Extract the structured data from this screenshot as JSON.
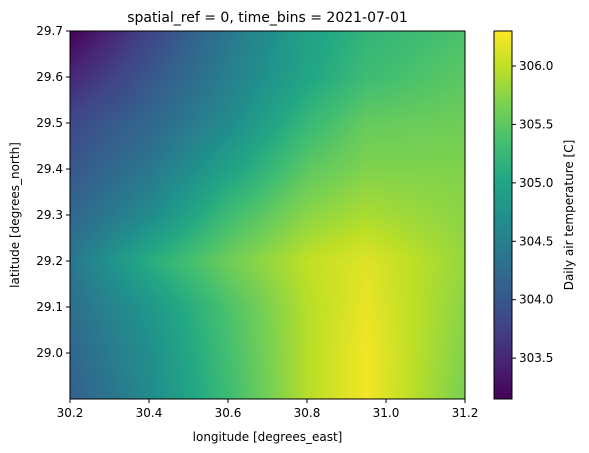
{
  "chart_data": {
    "type": "heatmap",
    "title": "spatial_ref = 0, time_bins = 2021-07-01",
    "xlabel": "longitude [degrees_east]",
    "ylabel": "latitude [degrees_north]",
    "xlim": [
      30.2,
      31.2
    ],
    "ylim": [
      28.9,
      29.7
    ],
    "xticks": [
      30.2,
      30.4,
      30.6,
      30.8,
      31.0,
      31.2
    ],
    "xtick_labels": [
      "30.2",
      "30.4",
      "30.6",
      "30.8",
      "31.0",
      "31.2"
    ],
    "yticks": [
      29.0,
      29.1,
      29.2,
      29.3,
      29.4,
      29.5,
      29.6,
      29.7
    ],
    "ytick_labels": [
      "29.0",
      "29.1",
      "29.2",
      "29.3",
      "29.4",
      "29.5",
      "29.6",
      "29.7"
    ],
    "colormap": "viridis",
    "colorbar": {
      "label": "Daily air temperature [C]",
      "range": [
        303.15,
        306.3
      ],
      "ticks": [
        303.5,
        304.0,
        304.5,
        305.0,
        305.5,
        306.0
      ],
      "tick_labels": [
        "303.5",
        "304.0",
        "304.5",
        "305.0",
        "305.5",
        "306.0"
      ]
    },
    "x": [
      30.2,
      30.4,
      30.6,
      30.8,
      30.95,
      31.2
    ],
    "y": [
      29.7,
      29.6,
      29.5,
      29.4,
      29.3,
      29.2,
      29.1,
      29.0,
      28.9
    ],
    "z": [
      [
        303.15,
        303.8,
        304.4,
        304.95,
        305.2,
        305.4
      ],
      [
        303.5,
        304.0,
        304.5,
        305.0,
        305.3,
        305.5
      ],
      [
        303.85,
        304.2,
        304.65,
        305.25,
        305.55,
        305.6
      ],
      [
        304.0,
        304.4,
        304.95,
        305.5,
        305.7,
        305.7
      ],
      [
        304.2,
        304.65,
        305.3,
        305.75,
        305.9,
        305.75
      ],
      [
        304.4,
        305.1,
        305.6,
        306.0,
        306.15,
        305.8
      ],
      [
        304.3,
        304.8,
        305.4,
        305.95,
        306.2,
        305.75
      ],
      [
        304.2,
        304.7,
        305.35,
        305.95,
        306.25,
        305.7
      ],
      [
        304.1,
        304.65,
        305.3,
        305.95,
        306.25,
        305.65
      ]
    ]
  }
}
